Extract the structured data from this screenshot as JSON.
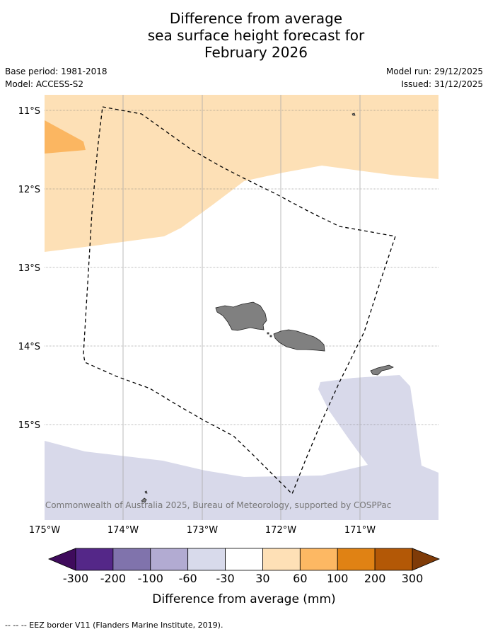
{
  "title_lines": [
    "Difference from average",
    "sea surface height forecast for",
    "February 2026"
  ],
  "meta": {
    "base_period": "Base period: 1981-2018",
    "model": "Model: ACCESS-S2",
    "model_run": "Model run: 29/12/2025",
    "issued": "Issued: 31/12/2025"
  },
  "map": {
    "lat_labels": [
      "11°S",
      "12°S",
      "13°S",
      "14°S",
      "15°S"
    ],
    "lon_labels": [
      "175°W",
      "174°W",
      "173°W",
      "172°W",
      "171°W"
    ],
    "copyright": "© Commonwealth of Australia 2025, Bureau of Meteorology, supported by COSPPac",
    "region_fills": {
      "above_30_60": "#fde0b6",
      "above_60_100": "#fbb661",
      "below_minus60_minus30": "#d8d9ea",
      "land": "#808080"
    }
  },
  "colorbar": {
    "label": "Difference from average (mm)",
    "ticks": [
      "-300",
      "-200",
      "-100",
      "-60",
      "-30",
      "30",
      "60",
      "100",
      "200",
      "300"
    ],
    "extend_low_color": "#3f0b5c",
    "extend_high_color": "#7f3b08",
    "colors": [
      "#542788",
      "#8073ac",
      "#b2abd2",
      "#d8daeb",
      "#ffffff",
      "#fee0b6",
      "#fdb863",
      "#e08214",
      "#b35806"
    ]
  },
  "footnote": "-- -- -- EEZ border V11 (Flanders Marine Institute, 2019)."
}
